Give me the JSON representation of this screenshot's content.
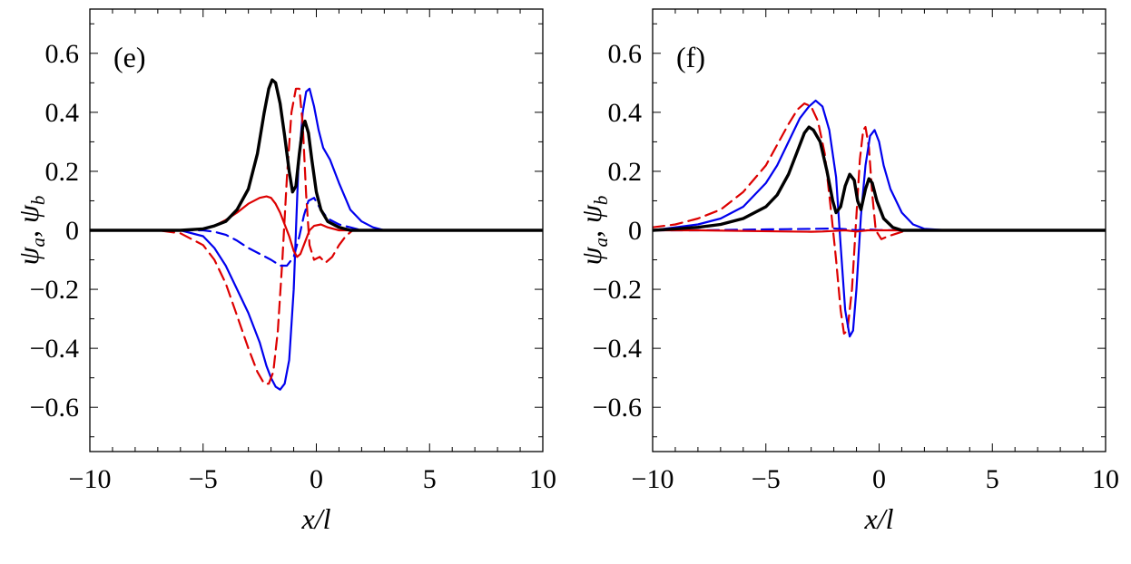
{
  "chart_data": [
    {
      "type": "line",
      "panel_label": "(e)",
      "xlabel": "x/l",
      "ylabel": {
        "a": "ψ",
        "a_sub": "a",
        "sep": ", ",
        "b": "ψ",
        "b_sub": "b"
      },
      "xlim": [
        -10,
        10
      ],
      "ylim": [
        -0.75,
        0.75
      ],
      "x_ticks": [
        -10,
        -5,
        0,
        5,
        10
      ],
      "x_tick_labels": [
        "−10",
        "−5",
        "0",
        "5",
        "10"
      ],
      "y_ticks": [
        -0.6,
        -0.4,
        -0.2,
        0,
        0.2,
        0.4,
        0.6
      ],
      "y_tick_labels": [
        "−0.6",
        "−0.4",
        "−0.2",
        "0",
        "0.2",
        "0.4",
        "0.6"
      ],
      "grid": false,
      "series": [
        {
          "color": "#0000ee",
          "style": "solid",
          "width": 2.2,
          "points": [
            [
              -10,
              0
            ],
            [
              -6,
              0
            ],
            [
              -5,
              -0.02
            ],
            [
              -4.5,
              -0.06
            ],
            [
              -4,
              -0.12
            ],
            [
              -3.5,
              -0.2
            ],
            [
              -3,
              -0.28
            ],
            [
              -2.5,
              -0.38
            ],
            [
              -2.2,
              -0.46
            ],
            [
              -2,
              -0.5
            ],
            [
              -1.8,
              -0.53
            ],
            [
              -1.6,
              -0.54
            ],
            [
              -1.4,
              -0.52
            ],
            [
              -1.2,
              -0.44
            ],
            [
              -1,
              -0.2
            ],
            [
              -0.8,
              0.2
            ],
            [
              -0.6,
              0.4
            ],
            [
              -0.45,
              0.47
            ],
            [
              -0.3,
              0.48
            ],
            [
              -0.1,
              0.42
            ],
            [
              0.1,
              0.34
            ],
            [
              0.3,
              0.28
            ],
            [
              0.6,
              0.24
            ],
            [
              1,
              0.16
            ],
            [
              1.5,
              0.07
            ],
            [
              2,
              0.03
            ],
            [
              2.5,
              0.01
            ],
            [
              3,
              0
            ],
            [
              10,
              0
            ]
          ]
        },
        {
          "color": "#dd0000",
          "style": "dashed",
          "width": 2.2,
          "points": [
            [
              -10,
              0
            ],
            [
              -7,
              0
            ],
            [
              -6,
              -0.01
            ],
            [
              -5,
              -0.05
            ],
            [
              -4.5,
              -0.1
            ],
            [
              -4,
              -0.18
            ],
            [
              -3.5,
              -0.29
            ],
            [
              -3,
              -0.4
            ],
            [
              -2.6,
              -0.48
            ],
            [
              -2.3,
              -0.52
            ],
            [
              -2.1,
              -0.52
            ],
            [
              -1.9,
              -0.48
            ],
            [
              -1.7,
              -0.34
            ],
            [
              -1.5,
              -0.1
            ],
            [
              -1.3,
              0.18
            ],
            [
              -1.1,
              0.4
            ],
            [
              -0.9,
              0.48
            ],
            [
              -0.75,
              0.48
            ],
            [
              -0.6,
              0.36
            ],
            [
              -0.45,
              0.12
            ],
            [
              -0.3,
              -0.05
            ],
            [
              -0.1,
              -0.1
            ],
            [
              0.15,
              -0.09
            ],
            [
              0.4,
              -0.11
            ],
            [
              0.7,
              -0.09
            ],
            [
              1,
              -0.05
            ],
            [
              1.3,
              -0.02
            ],
            [
              1.6,
              0
            ],
            [
              10,
              0
            ]
          ]
        },
        {
          "color": "#0000ee",
          "style": "dashed",
          "width": 2.2,
          "points": [
            [
              -10,
              0
            ],
            [
              -5,
              0
            ],
            [
              -4.5,
              -0.005
            ],
            [
              -4,
              -0.015
            ],
            [
              -3.5,
              -0.035
            ],
            [
              -3,
              -0.06
            ],
            [
              -2.5,
              -0.08
            ],
            [
              -2,
              -0.1
            ],
            [
              -1.6,
              -0.12
            ],
            [
              -1.3,
              -0.12
            ],
            [
              -1,
              -0.09
            ],
            [
              -0.75,
              -0.02
            ],
            [
              -0.55,
              0.05
            ],
            [
              -0.35,
              0.1
            ],
            [
              -0.1,
              0.11
            ],
            [
              0.2,
              0.07
            ],
            [
              0.5,
              0.04
            ],
            [
              1,
              0.02
            ],
            [
              1.5,
              0.01
            ],
            [
              2,
              0
            ],
            [
              10,
              0
            ]
          ]
        },
        {
          "color": "#dd0000",
          "style": "solid",
          "width": 2.2,
          "points": [
            [
              -10,
              0
            ],
            [
              -6,
              0
            ],
            [
              -5,
              0.005
            ],
            [
              -4.5,
              0.015
            ],
            [
              -4,
              0.035
            ],
            [
              -3.5,
              0.06
            ],
            [
              -3,
              0.09
            ],
            [
              -2.5,
              0.11
            ],
            [
              -2.2,
              0.115
            ],
            [
              -2,
              0.11
            ],
            [
              -1.8,
              0.09
            ],
            [
              -1.6,
              0.06
            ],
            [
              -1.4,
              0.02
            ],
            [
              -1.2,
              -0.02
            ],
            [
              -1,
              -0.07
            ],
            [
              -0.85,
              -0.09
            ],
            [
              -0.7,
              -0.08
            ],
            [
              -0.5,
              -0.04
            ],
            [
              -0.3,
              0
            ],
            [
              -0.1,
              0.015
            ],
            [
              0.2,
              0.02
            ],
            [
              0.5,
              0.01
            ],
            [
              1,
              0
            ],
            [
              10,
              0
            ]
          ]
        },
        {
          "color": "#000000",
          "style": "solid",
          "width": 3.4,
          "points": [
            [
              -10,
              0
            ],
            [
              -6,
              0
            ],
            [
              -5,
              0.005
            ],
            [
              -4.5,
              0.015
            ],
            [
              -4,
              0.03
            ],
            [
              -3.5,
              0.07
            ],
            [
              -3,
              0.14
            ],
            [
              -2.6,
              0.26
            ],
            [
              -2.3,
              0.4
            ],
            [
              -2.1,
              0.48
            ],
            [
              -1.95,
              0.51
            ],
            [
              -1.8,
              0.5
            ],
            [
              -1.6,
              0.43
            ],
            [
              -1.4,
              0.32
            ],
            [
              -1.2,
              0.2
            ],
            [
              -1.05,
              0.13
            ],
            [
              -0.9,
              0.15
            ],
            [
              -0.75,
              0.26
            ],
            [
              -0.6,
              0.35
            ],
            [
              -0.5,
              0.37
            ],
            [
              -0.35,
              0.33
            ],
            [
              -0.2,
              0.24
            ],
            [
              0,
              0.13
            ],
            [
              0.2,
              0.07
            ],
            [
              0.5,
              0.03
            ],
            [
              1,
              0.01
            ],
            [
              1.5,
              0
            ],
            [
              10,
              0
            ]
          ]
        }
      ]
    },
    {
      "type": "line",
      "panel_label": "(f)",
      "xlabel": "x/l",
      "ylabel": {
        "a": "ψ",
        "a_sub": "a",
        "sep": ", ",
        "b": "ψ",
        "b_sub": "b"
      },
      "xlim": [
        -10,
        10
      ],
      "ylim": [
        -0.75,
        0.75
      ],
      "x_ticks": [
        -10,
        -5,
        0,
        5,
        10
      ],
      "x_tick_labels": [
        "−10",
        "−5",
        "0",
        "5",
        "10"
      ],
      "y_ticks": [
        -0.6,
        -0.4,
        -0.2,
        0,
        0.2,
        0.4,
        0.6
      ],
      "y_tick_labels": [
        "−0.6",
        "−0.4",
        "−0.2",
        "0",
        "0.2",
        "0.4",
        "0.6"
      ],
      "grid": false,
      "series": [
        {
          "color": "#dd0000",
          "style": "dashed",
          "width": 2.2,
          "points": [
            [
              -10,
              0.01
            ],
            [
              -9,
              0.02
            ],
            [
              -8,
              0.04
            ],
            [
              -7,
              0.07
            ],
            [
              -6,
              0.13
            ],
            [
              -5,
              0.22
            ],
            [
              -4.5,
              0.29
            ],
            [
              -4,
              0.36
            ],
            [
              -3.6,
              0.41
            ],
            [
              -3.3,
              0.43
            ],
            [
              -3,
              0.42
            ],
            [
              -2.7,
              0.37
            ],
            [
              -2.4,
              0.26
            ],
            [
              -2.1,
              0.05
            ],
            [
              -1.9,
              -0.1
            ],
            [
              -1.7,
              -0.27
            ],
            [
              -1.55,
              -0.35
            ],
            [
              -1.4,
              -0.34
            ],
            [
              -1.2,
              -0.2
            ],
            [
              -1,
              0.05
            ],
            [
              -0.85,
              0.24
            ],
            [
              -0.7,
              0.34
            ],
            [
              -0.6,
              0.35
            ],
            [
              -0.45,
              0.28
            ],
            [
              -0.3,
              0.12
            ],
            [
              -0.15,
              0
            ],
            [
              0.1,
              -0.03
            ],
            [
              0.4,
              -0.02
            ],
            [
              0.8,
              -0.01
            ],
            [
              1.2,
              0
            ],
            [
              10,
              0
            ]
          ]
        },
        {
          "color": "#0000ee",
          "style": "solid",
          "width": 2.2,
          "points": [
            [
              -10,
              0
            ],
            [
              -9,
              0.01
            ],
            [
              -8,
              0.02
            ],
            [
              -7,
              0.04
            ],
            [
              -6,
              0.08
            ],
            [
              -5,
              0.16
            ],
            [
              -4.5,
              0.22
            ],
            [
              -4,
              0.3
            ],
            [
              -3.5,
              0.38
            ],
            [
              -3.1,
              0.42
            ],
            [
              -2.8,
              0.44
            ],
            [
              -2.5,
              0.42
            ],
            [
              -2.2,
              0.34
            ],
            [
              -1.9,
              0.18
            ],
            [
              -1.7,
              -0.05
            ],
            [
              -1.5,
              -0.27
            ],
            [
              -1.3,
              -0.36
            ],
            [
              -1.15,
              -0.34
            ],
            [
              -1,
              -0.2
            ],
            [
              -0.8,
              0.05
            ],
            [
              -0.6,
              0.22
            ],
            [
              -0.4,
              0.32
            ],
            [
              -0.2,
              0.34
            ],
            [
              0,
              0.3
            ],
            [
              0.2,
              0.22
            ],
            [
              0.5,
              0.14
            ],
            [
              1,
              0.06
            ],
            [
              1.5,
              0.02
            ],
            [
              2,
              0.005
            ],
            [
              3,
              0
            ],
            [
              10,
              0
            ]
          ]
        },
        {
          "color": "#0000ee",
          "style": "dashed",
          "width": 2.2,
          "points": [
            [
              -10,
              0
            ],
            [
              -8,
              0
            ],
            [
              -6,
              0.002
            ],
            [
              -5,
              0.003
            ],
            [
              -4,
              0.004
            ],
            [
              -3,
              0.005
            ],
            [
              -2,
              0.006
            ],
            [
              -1.5,
              0.004
            ],
            [
              -1,
              0
            ],
            [
              -0.5,
              0.003
            ],
            [
              0,
              0.001
            ],
            [
              1,
              0
            ],
            [
              10,
              0
            ]
          ]
        },
        {
          "color": "#dd0000",
          "style": "solid",
          "width": 2.2,
          "points": [
            [
              -10,
              0
            ],
            [
              -8,
              0
            ],
            [
              -6,
              -0.002
            ],
            [
              -4,
              -0.004
            ],
            [
              -3,
              -0.005
            ],
            [
              -2.5,
              -0.004
            ],
            [
              -2,
              -0.002
            ],
            [
              -1.5,
              0
            ],
            [
              -1,
              -0.004
            ],
            [
              -0.5,
              0
            ],
            [
              0,
              0
            ],
            [
              10,
              0
            ]
          ]
        },
        {
          "color": "#000000",
          "style": "solid",
          "width": 3.4,
          "points": [
            [
              -10,
              0
            ],
            [
              -9,
              0.005
            ],
            [
              -8,
              0.01
            ],
            [
              -7,
              0.02
            ],
            [
              -6,
              0.04
            ],
            [
              -5,
              0.08
            ],
            [
              -4.5,
              0.12
            ],
            [
              -4,
              0.19
            ],
            [
              -3.6,
              0.27
            ],
            [
              -3.3,
              0.33
            ],
            [
              -3.1,
              0.35
            ],
            [
              -2.9,
              0.34
            ],
            [
              -2.6,
              0.3
            ],
            [
              -2.3,
              0.2
            ],
            [
              -2.05,
              0.1
            ],
            [
              -1.9,
              0.06
            ],
            [
              -1.7,
              0.08
            ],
            [
              -1.5,
              0.15
            ],
            [
              -1.3,
              0.19
            ],
            [
              -1.1,
              0.17
            ],
            [
              -0.95,
              0.1
            ],
            [
              -0.8,
              0.07
            ],
            [
              -0.6,
              0.14
            ],
            [
              -0.45,
              0.175
            ],
            [
              -0.3,
              0.16
            ],
            [
              -0.1,
              0.1
            ],
            [
              0.2,
              0.04
            ],
            [
              0.6,
              0.01
            ],
            [
              1,
              0
            ],
            [
              10,
              0
            ]
          ]
        }
      ]
    }
  ]
}
